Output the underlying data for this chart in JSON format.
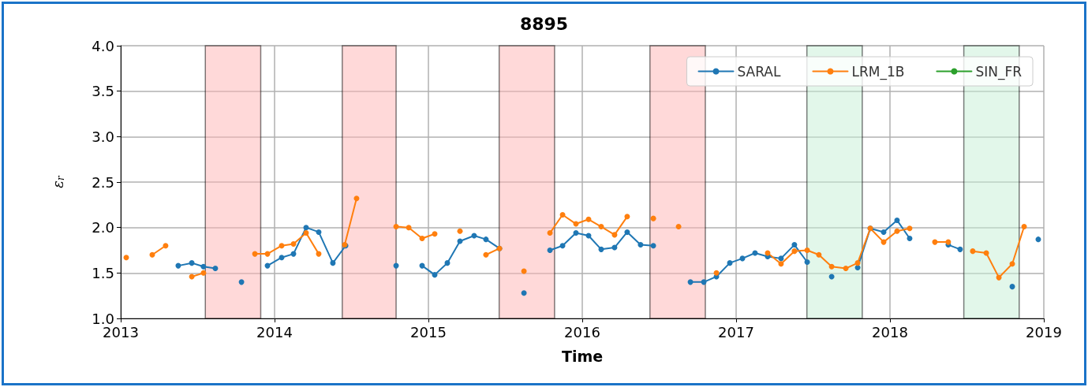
{
  "chart_data": {
    "type": "line",
    "title": "8895",
    "xlabel": "Time",
    "ylabel": "ε$_{r}$",
    "xlim": [
      2013,
      2019
    ],
    "xticks": [
      2013,
      2014,
      2015,
      2016,
      2017,
      2018,
      2019
    ],
    "ylim": [
      1,
      4
    ],
    "yticks": [
      {
        "value": 1,
        "label": "1.0"
      },
      {
        "value": 1.5,
        "label": "1.5"
      },
      {
        "value": 2,
        "label": "2.0"
      },
      {
        "value": 2.5,
        "label": "2.5"
      },
      {
        "value": 3,
        "label": "3.0"
      },
      {
        "value": 3.5,
        "label": "3.5"
      },
      {
        "value": 4,
        "label": "4.0"
      }
    ],
    "grid": true,
    "legend": "top right",
    "marker": "circle",
    "line_style": "solid",
    "bands": [
      {
        "axis": "x",
        "from": 2013.55,
        "to": 2013.91,
        "color": "#ffb3b3"
      },
      {
        "axis": "x",
        "from": 2014.44,
        "to": 2014.79,
        "color": "#ffb3b3"
      },
      {
        "axis": "x",
        "from": 2015.46,
        "to": 2015.82,
        "color": "#ffb3b3"
      },
      {
        "axis": "x",
        "from": 2016.44,
        "to": 2016.8,
        "color": "#ffb3b3"
      },
      {
        "axis": "x",
        "from": 2017.46,
        "to": 2017.82,
        "color": "#c6f0d6"
      },
      {
        "axis": "x",
        "from": 2018.48,
        "to": 2018.84,
        "color": "#c6f0d6"
      }
    ],
    "series": [
      {
        "name": "SARAL",
        "color": "#1f77b4",
        "x": [
          2013.374,
          2013.462,
          2013.538,
          2013.615,
          2013.7,
          2013.785,
          2013.85,
          2013.954,
          2014.046,
          2014.123,
          2014.205,
          2014.287,
          2014.379,
          2014.462,
          2014.6,
          2014.79,
          2014.87,
          2014.959,
          2015.041,
          2015.123,
          2015.205,
          2015.297,
          2015.374,
          2015.462,
          2015.55,
          2015.621,
          2015.7,
          2015.79,
          2015.872,
          2015.959,
          2016.041,
          2016.123,
          2016.21,
          2016.292,
          2016.379,
          2016.462,
          2016.6,
          2016.703,
          2016.79,
          2016.872,
          2016.959,
          2017.041,
          2017.123,
          2017.205,
          2017.292,
          2017.379,
          2017.462,
          2017.54,
          2017.621,
          2017.7,
          2017.79,
          2017.872,
          2017.959,
          2018.046,
          2018.128,
          2018.2,
          2018.379,
          2018.456,
          2018.6,
          2018.795,
          2018.9,
          2018.964
        ],
        "values": [
          1.58,
          1.61,
          1.57,
          1.55,
          null,
          1.4,
          null,
          1.58,
          1.67,
          1.71,
          2.0,
          1.95,
          1.61,
          1.8,
          null,
          1.58,
          null,
          1.58,
          1.48,
          1.61,
          1.85,
          1.91,
          1.87,
          1.77,
          null,
          1.28,
          null,
          1.75,
          1.8,
          1.94,
          1.91,
          1.76,
          1.78,
          1.95,
          1.81,
          1.8,
          null,
          1.4,
          1.4,
          1.46,
          1.61,
          1.66,
          1.72,
          1.68,
          1.66,
          1.81,
          1.62,
          null,
          1.46,
          null,
          1.56,
          1.99,
          1.95,
          2.08,
          1.88,
          null,
          1.81,
          1.76,
          null,
          1.35,
          null,
          1.87
        ]
      },
      {
        "name": "LRM_1B",
        "color": "#ff7f0e",
        "x": [
          2013.036,
          2013.1,
          2013.205,
          2013.292,
          2013.4,
          2013.462,
          2013.538,
          2013.7,
          2013.872,
          2013.954,
          2014.046,
          2014.123,
          2014.205,
          2014.287,
          2014.36,
          2014.456,
          2014.533,
          2014.65,
          2014.79,
          2014.872,
          2014.959,
          2015.041,
          2015.12,
          2015.205,
          2015.3,
          2015.374,
          2015.462,
          2015.55,
          2015.621,
          2015.7,
          2015.79,
          2015.872,
          2015.959,
          2016.041,
          2016.123,
          2016.21,
          2016.292,
          2016.4,
          2016.462,
          2016.55,
          2016.626,
          2016.75,
          2016.872,
          2017.1,
          2017.205,
          2017.292,
          2017.379,
          2017.462,
          2017.538,
          2017.621,
          2017.713,
          2017.79,
          2017.872,
          2017.959,
          2018.046,
          2018.128,
          2018.2,
          2018.292,
          2018.379,
          2018.45,
          2018.538,
          2018.626,
          2018.708,
          2018.795,
          2018.872
        ],
        "values": [
          1.67,
          null,
          1.7,
          1.8,
          null,
          1.46,
          1.5,
          null,
          1.71,
          1.71,
          1.8,
          1.82,
          1.94,
          1.71,
          null,
          1.81,
          2.32,
          null,
          2.01,
          2.0,
          1.88,
          1.93,
          null,
          1.96,
          null,
          1.7,
          1.77,
          null,
          1.52,
          null,
          1.94,
          2.14,
          2.04,
          2.09,
          2.01,
          1.92,
          2.12,
          null,
          2.1,
          null,
          2.01,
          null,
          1.5,
          null,
          1.72,
          1.6,
          1.74,
          1.75,
          1.7,
          1.57,
          1.55,
          1.61,
          1.99,
          1.84,
          1.96,
          1.99,
          null,
          1.84,
          1.84,
          null,
          1.74,
          1.72,
          1.45,
          1.6,
          2.01
        ]
      },
      {
        "name": "SIN_FR",
        "color": "#2ca02c"
      }
    ]
  }
}
